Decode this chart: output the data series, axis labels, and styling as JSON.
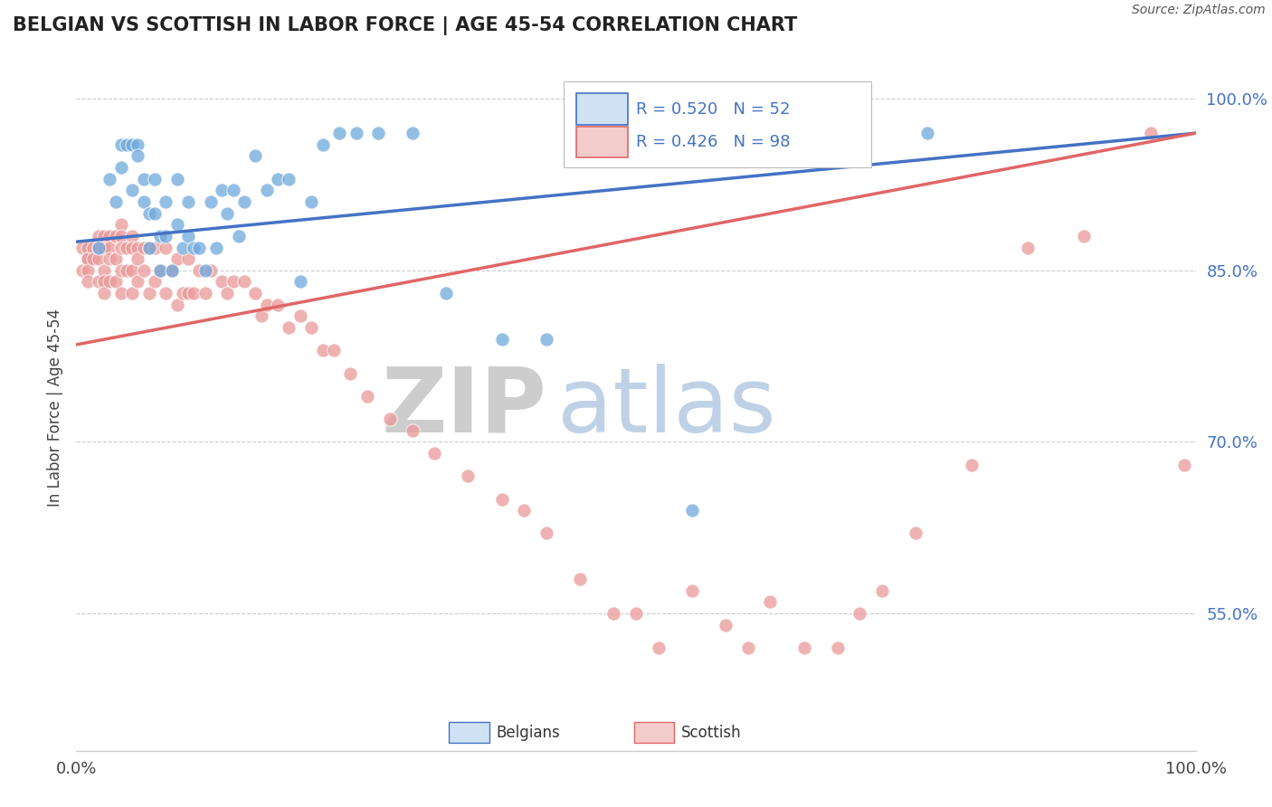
{
  "title": "BELGIAN VS SCOTTISH IN LABOR FORCE | AGE 45-54 CORRELATION CHART",
  "source_text": "Source: ZipAtlas.com",
  "ylabel": "In Labor Force | Age 45-54",
  "xlim": [
    0.0,
    1.0
  ],
  "ylim": [
    0.43,
    1.03
  ],
  "yticks": [
    0.55,
    0.7,
    0.85,
    1.0
  ],
  "yticklabels": [
    "55.0%",
    "70.0%",
    "85.0%",
    "100.0%"
  ],
  "xticks": [
    0.0,
    1.0
  ],
  "xticklabels": [
    "0.0%",
    "100.0%"
  ],
  "belgian_color": "#6fa8dc",
  "scottish_color": "#ea9999",
  "belgian_line_color": "#4472c4",
  "scottish_line_color": "#e06666",
  "legend_box_color": "#cfe2f3",
  "legend_box_color2": "#f4cccc",
  "R_belgian": 0.52,
  "N_belgian": 52,
  "R_scottish": 0.426,
  "N_scottish": 98,
  "watermark_zip": "ZIP",
  "watermark_atlas": "atlas",
  "belgians_x": [
    0.02,
    0.03,
    0.035,
    0.04,
    0.04,
    0.045,
    0.05,
    0.05,
    0.055,
    0.055,
    0.06,
    0.06,
    0.065,
    0.065,
    0.07,
    0.07,
    0.075,
    0.075,
    0.08,
    0.08,
    0.085,
    0.09,
    0.09,
    0.095,
    0.1,
    0.1,
    0.105,
    0.11,
    0.115,
    0.12,
    0.125,
    0.13,
    0.135,
    0.14,
    0.145,
    0.15,
    0.16,
    0.17,
    0.18,
    0.19,
    0.2,
    0.21,
    0.22,
    0.235,
    0.25,
    0.27,
    0.3,
    0.33,
    0.38,
    0.42,
    0.55,
    0.76
  ],
  "belgians_y": [
    0.87,
    0.93,
    0.91,
    0.96,
    0.94,
    0.96,
    0.96,
    0.92,
    0.96,
    0.95,
    0.93,
    0.91,
    0.9,
    0.87,
    0.93,
    0.9,
    0.88,
    0.85,
    0.91,
    0.88,
    0.85,
    0.93,
    0.89,
    0.87,
    0.91,
    0.88,
    0.87,
    0.87,
    0.85,
    0.91,
    0.87,
    0.92,
    0.9,
    0.92,
    0.88,
    0.91,
    0.95,
    0.92,
    0.93,
    0.93,
    0.84,
    0.91,
    0.96,
    0.97,
    0.97,
    0.97,
    0.97,
    0.83,
    0.79,
    0.79,
    0.64,
    0.97
  ],
  "scottish_x": [
    0.005,
    0.005,
    0.01,
    0.01,
    0.01,
    0.01,
    0.01,
    0.015,
    0.015,
    0.02,
    0.02,
    0.02,
    0.02,
    0.025,
    0.025,
    0.025,
    0.025,
    0.025,
    0.03,
    0.03,
    0.03,
    0.03,
    0.035,
    0.035,
    0.035,
    0.04,
    0.04,
    0.04,
    0.04,
    0.04,
    0.045,
    0.045,
    0.05,
    0.05,
    0.05,
    0.05,
    0.055,
    0.055,
    0.055,
    0.06,
    0.06,
    0.065,
    0.065,
    0.07,
    0.07,
    0.075,
    0.08,
    0.08,
    0.085,
    0.09,
    0.09,
    0.095,
    0.1,
    0.1,
    0.105,
    0.11,
    0.115,
    0.12,
    0.13,
    0.135,
    0.14,
    0.15,
    0.16,
    0.165,
    0.17,
    0.18,
    0.19,
    0.2,
    0.21,
    0.22,
    0.23,
    0.245,
    0.26,
    0.28,
    0.3,
    0.32,
    0.35,
    0.38,
    0.4,
    0.42,
    0.45,
    0.48,
    0.5,
    0.52,
    0.55,
    0.58,
    0.6,
    0.62,
    0.65,
    0.68,
    0.7,
    0.72,
    0.75,
    0.8,
    0.85,
    0.9,
    0.96,
    0.99
  ],
  "scottish_y": [
    0.87,
    0.85,
    0.87,
    0.86,
    0.86,
    0.85,
    0.84,
    0.87,
    0.86,
    0.88,
    0.87,
    0.86,
    0.84,
    0.88,
    0.87,
    0.85,
    0.84,
    0.83,
    0.88,
    0.87,
    0.86,
    0.84,
    0.88,
    0.86,
    0.84,
    0.89,
    0.88,
    0.87,
    0.85,
    0.83,
    0.87,
    0.85,
    0.88,
    0.87,
    0.85,
    0.83,
    0.87,
    0.86,
    0.84,
    0.87,
    0.85,
    0.87,
    0.83,
    0.87,
    0.84,
    0.85,
    0.87,
    0.83,
    0.85,
    0.86,
    0.82,
    0.83,
    0.86,
    0.83,
    0.83,
    0.85,
    0.83,
    0.85,
    0.84,
    0.83,
    0.84,
    0.84,
    0.83,
    0.81,
    0.82,
    0.82,
    0.8,
    0.81,
    0.8,
    0.78,
    0.78,
    0.76,
    0.74,
    0.72,
    0.71,
    0.69,
    0.67,
    0.65,
    0.64,
    0.62,
    0.58,
    0.55,
    0.55,
    0.52,
    0.57,
    0.54,
    0.52,
    0.56,
    0.52,
    0.52,
    0.55,
    0.57,
    0.62,
    0.68,
    0.87,
    0.88,
    0.97,
    0.68
  ]
}
